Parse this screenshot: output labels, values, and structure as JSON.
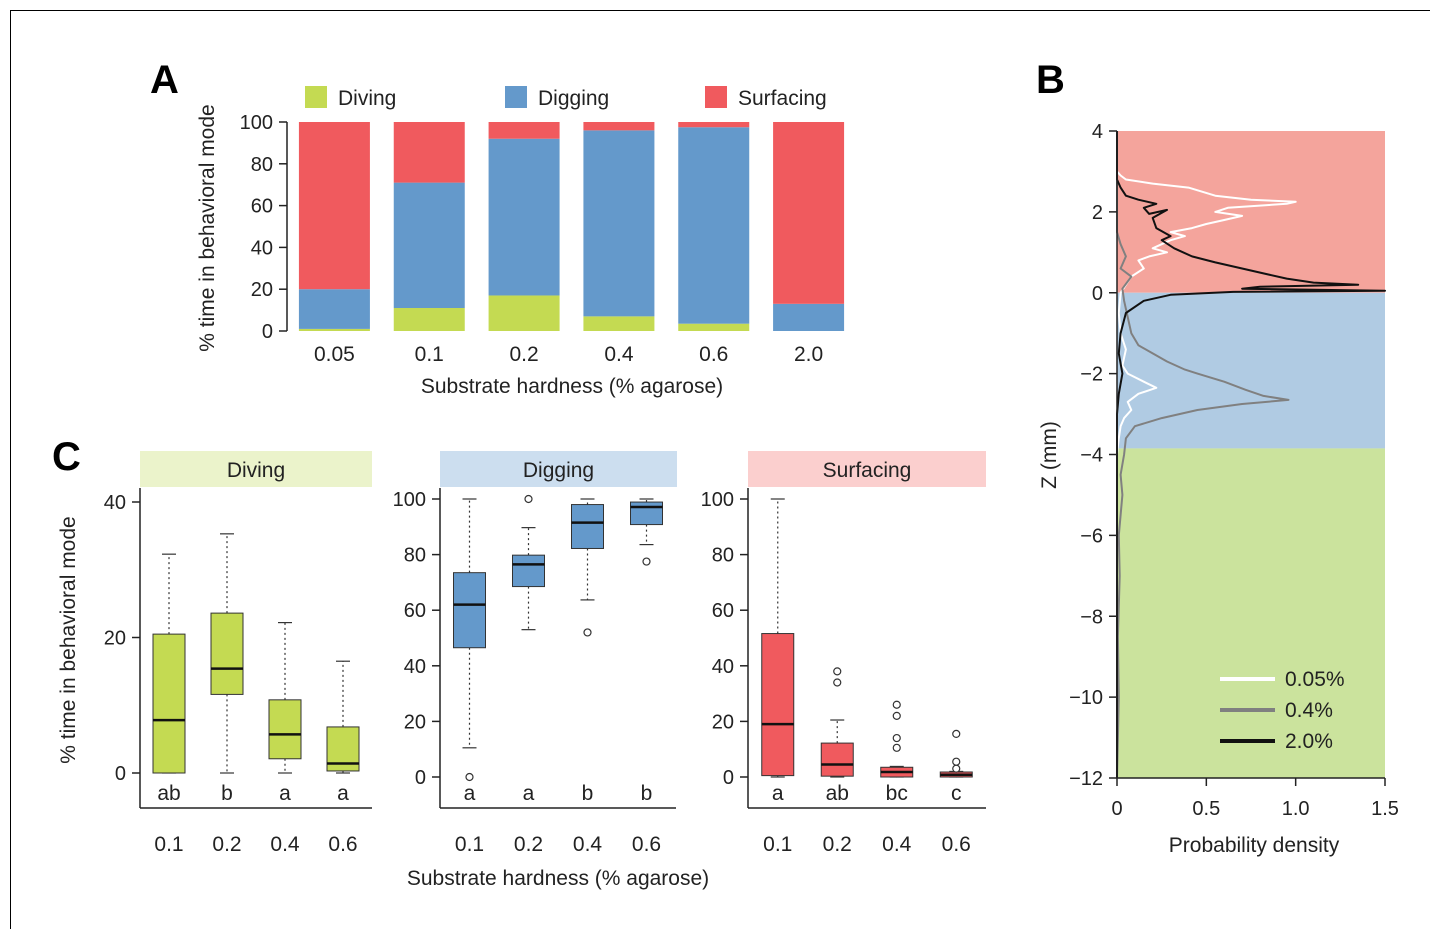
{
  "panels": {
    "a": "A",
    "b": "B",
    "c": "C"
  },
  "chart_data": [
    {
      "id": "A",
      "type": "bar",
      "stacked": true,
      "categories": [
        "0.05",
        "0.1",
        "0.2",
        "0.4",
        "0.6",
        "2.0"
      ],
      "series": [
        {
          "name": "Diving",
          "color": "#c4da52",
          "values": [
            1,
            11,
            17,
            7,
            3.5,
            0
          ]
        },
        {
          "name": "Digging",
          "color": "#6499cb",
          "values": [
            19,
            60,
            75,
            89,
            94,
            13
          ]
        },
        {
          "name": "Surfacing",
          "color": "#f05a5e",
          "values": [
            80,
            29,
            8,
            4,
            2.5,
            87
          ]
        }
      ],
      "yticks": [
        "0",
        "20",
        "40",
        "60",
        "80",
        "100"
      ],
      "ylim": [
        0,
        100
      ],
      "xlabel": "Substrate hardness (% agarose)",
      "ylabel": "% time in behavioral mode",
      "legend": "top"
    },
    {
      "id": "B",
      "type": "line",
      "orientation": "horizontal-density",
      "xlabel": "Probability density",
      "ylabel": "Z (mm)",
      "xlim": [
        0,
        1.5
      ],
      "ylim": [
        -12,
        4
      ],
      "xticks": [
        "0",
        "0.5",
        "1.0",
        "1.5"
      ],
      "yticks": [
        "4",
        "2",
        "0",
        "−2",
        "−4",
        "−6",
        "−8",
        "−10",
        "−12"
      ],
      "zones": [
        {
          "from": 0,
          "to": 4,
          "color": "#f4a49c"
        },
        {
          "from": -3.85,
          "to": 0,
          "color": "#b0cbe3"
        },
        {
          "from": -12,
          "to": -3.85,
          "color": "#cbe39d"
        }
      ],
      "series": [
        {
          "name": "0.05%",
          "color": "#ffffff",
          "points": [
            [
              0,
              4
            ],
            [
              0,
              3
            ],
            [
              0.02,
              2.9
            ],
            [
              0.05,
              2.8
            ],
            [
              0.2,
              2.7
            ],
            [
              0.4,
              2.6
            ],
            [
              0.55,
              2.4
            ],
            [
              0.75,
              2.3
            ],
            [
              1.0,
              2.25
            ],
            [
              0.95,
              2.2
            ],
            [
              0.62,
              2.1
            ],
            [
              0.55,
              2.0
            ],
            [
              0.7,
              1.9
            ],
            [
              0.6,
              1.8
            ],
            [
              0.5,
              1.7
            ],
            [
              0.42,
              1.6
            ],
            [
              0.3,
              1.5
            ],
            [
              0.38,
              1.4
            ],
            [
              0.3,
              1.3
            ],
            [
              0.25,
              1.2
            ],
            [
              0.2,
              1.1
            ],
            [
              0.28,
              1.0
            ],
            [
              0.18,
              0.9
            ],
            [
              0.12,
              0.8
            ],
            [
              0.15,
              0.6
            ],
            [
              0.08,
              0.4
            ],
            [
              0.05,
              0.2
            ],
            [
              0.02,
              0
            ],
            [
              0.01,
              -0.5
            ],
            [
              0.02,
              -1.0
            ],
            [
              0.05,
              -1.4
            ],
            [
              0.03,
              -1.8
            ],
            [
              0.06,
              -2.0
            ],
            [
              0.15,
              -2.2
            ],
            [
              0.22,
              -2.35
            ],
            [
              0.12,
              -2.5
            ],
            [
              0.06,
              -2.7
            ],
            [
              0.08,
              -2.9
            ],
            [
              0.04,
              -3.1
            ],
            [
              0.02,
              -3.3
            ],
            [
              0.01,
              -3.6
            ],
            [
              0,
              -4
            ],
            [
              0,
              -12
            ]
          ]
        },
        {
          "name": "0.4%",
          "color": "#808080",
          "points": [
            [
              0,
              4
            ],
            [
              0,
              1.5
            ],
            [
              0.02,
              1.2
            ],
            [
              0.05,
              0.9
            ],
            [
              0.02,
              0.6
            ],
            [
              0.08,
              0.4
            ],
            [
              0.03,
              0.1
            ],
            [
              0.04,
              -0.2
            ],
            [
              0.06,
              -0.6
            ],
            [
              0.08,
              -1.0
            ],
            [
              0.12,
              -1.3
            ],
            [
              0.2,
              -1.5
            ],
            [
              0.28,
              -1.7
            ],
            [
              0.38,
              -1.9
            ],
            [
              0.45,
              -2.0
            ],
            [
              0.6,
              -2.2
            ],
            [
              0.72,
              -2.4
            ],
            [
              0.82,
              -2.55
            ],
            [
              0.96,
              -2.65
            ],
            [
              0.7,
              -2.75
            ],
            [
              0.45,
              -2.9
            ],
            [
              0.25,
              -3.1
            ],
            [
              0.1,
              -3.3
            ],
            [
              0.05,
              -3.6
            ],
            [
              0.04,
              -4.0
            ],
            [
              0.02,
              -4.5
            ],
            [
              0.03,
              -5.0
            ],
            [
              0.01,
              -6.0
            ],
            [
              0.015,
              -7.0
            ],
            [
              0.005,
              -8.5
            ],
            [
              0.01,
              -10
            ],
            [
              0,
              -12
            ]
          ]
        },
        {
          "name": "2.0%",
          "color": "#111111",
          "points": [
            [
              0,
              4
            ],
            [
              0,
              2.8
            ],
            [
              0.02,
              2.6
            ],
            [
              0.05,
              2.4
            ],
            [
              0.12,
              2.3
            ],
            [
              0.22,
              2.2
            ],
            [
              0.15,
              2.1
            ],
            [
              0.18,
              1.95
            ],
            [
              0.28,
              2.05
            ],
            [
              0.2,
              1.85
            ],
            [
              0.22,
              1.6
            ],
            [
              0.3,
              1.4
            ],
            [
              0.25,
              1.3
            ],
            [
              0.32,
              1.1
            ],
            [
              0.42,
              0.9
            ],
            [
              0.55,
              0.75
            ],
            [
              0.7,
              0.6
            ],
            [
              0.85,
              0.45
            ],
            [
              0.95,
              0.35
            ],
            [
              1.1,
              0.25
            ],
            [
              1.35,
              0.2
            ],
            [
              0.8,
              0.15
            ],
            [
              0.7,
              0.1
            ],
            [
              1.5,
              0.05
            ],
            [
              0.65,
              0.02
            ],
            [
              0.3,
              -0.05
            ],
            [
              0.15,
              -0.2
            ],
            [
              0.05,
              -0.5
            ],
            [
              0.02,
              -1.0
            ],
            [
              0.01,
              -1.5
            ],
            [
              0.03,
              -2.0
            ],
            [
              0.01,
              -2.5
            ],
            [
              0,
              -3
            ],
            [
              0,
              -12
            ]
          ]
        }
      ],
      "legend": "bottom-right"
    },
    {
      "id": "C",
      "type": "box",
      "xlabel": "Substrate hardness (% agarose)",
      "ylabel": "% time in behavioral mode",
      "subplots": [
        {
          "title": "Diving",
          "header_color": "#ebf3cb",
          "box_color": "#c4da52",
          "ylim": [
            0,
            40
          ],
          "yticks": [
            "0",
            "20",
            "40"
          ],
          "categories": [
            "0.1",
            "0.2",
            "0.4",
            "0.6"
          ],
          "boxes": [
            {
              "min": 0,
              "q1": 0,
              "median": 7.8,
              "q3": 20.5,
              "max": 32.3,
              "outliers": [],
              "letter": "ab"
            },
            {
              "min": 0,
              "q1": 11.6,
              "median": 15.4,
              "q3": 23.6,
              "max": 35.3,
              "outliers": [],
              "letter": "b"
            },
            {
              "min": 0,
              "q1": 2.1,
              "median": 5.7,
              "q3": 10.8,
              "max": 22.2,
              "outliers": [],
              "letter": "a"
            },
            {
              "min": 0,
              "q1": 0.3,
              "median": 1.4,
              "q3": 6.8,
              "max": 16.5,
              "outliers": [],
              "letter": "a"
            }
          ]
        },
        {
          "title": "Digging",
          "header_color": "#ccdeef",
          "box_color": "#6499cb",
          "ylim": [
            0,
            100
          ],
          "yticks": [
            "0",
            "20",
            "40",
            "60",
            "80",
            "100"
          ],
          "categories": [
            "0.1",
            "0.2",
            "0.4",
            "0.6"
          ],
          "boxes": [
            {
              "min": 10.5,
              "q1": 46.5,
              "median": 62,
              "q3": 73.5,
              "max": 100,
              "outliers": [
                0
              ],
              "letter": "a"
            },
            {
              "min": 53,
              "q1": 68.5,
              "median": 76.5,
              "q3": 79.8,
              "max": 89.7,
              "outliers": [
                100
              ],
              "letter": "a"
            },
            {
              "min": 63.7,
              "q1": 82.2,
              "median": 91.5,
              "q3": 98,
              "max": 100,
              "outliers": [
                52
              ],
              "letter": "b"
            },
            {
              "min": 83.6,
              "q1": 90.8,
              "median": 97.1,
              "q3": 98.9,
              "max": 100,
              "outliers": [
                77.5
              ],
              "letter": "b"
            }
          ]
        },
        {
          "title": "Surfacing",
          "header_color": "#fbcfce",
          "box_color": "#f05a5e",
          "ylim": [
            0,
            100
          ],
          "yticks": [
            "0",
            "20",
            "40",
            "60",
            "80",
            "100"
          ],
          "categories": [
            "0.1",
            "0.2",
            "0.4",
            "0.6"
          ],
          "boxes": [
            {
              "min": 0,
              "q1": 0.5,
              "median": 19,
              "q3": 51.6,
              "max": 100,
              "outliers": [],
              "letter": "a"
            },
            {
              "min": 0,
              "q1": 0.3,
              "median": 4.5,
              "q3": 12.2,
              "max": 20.5,
              "outliers": [
                34,
                38
              ],
              "letter": "ab"
            },
            {
              "min": 0,
              "q1": 0,
              "median": 1.8,
              "q3": 3.5,
              "max": 3.8,
              "outliers": [
                10.5,
                14,
                22,
                26
              ],
              "letter": "bc"
            },
            {
              "min": 0,
              "q1": 0,
              "median": 0.8,
              "q3": 1.8,
              "max": 2,
              "outliers": [
                3,
                5.5,
                15.5
              ],
              "letter": "c"
            }
          ]
        }
      ]
    }
  ]
}
